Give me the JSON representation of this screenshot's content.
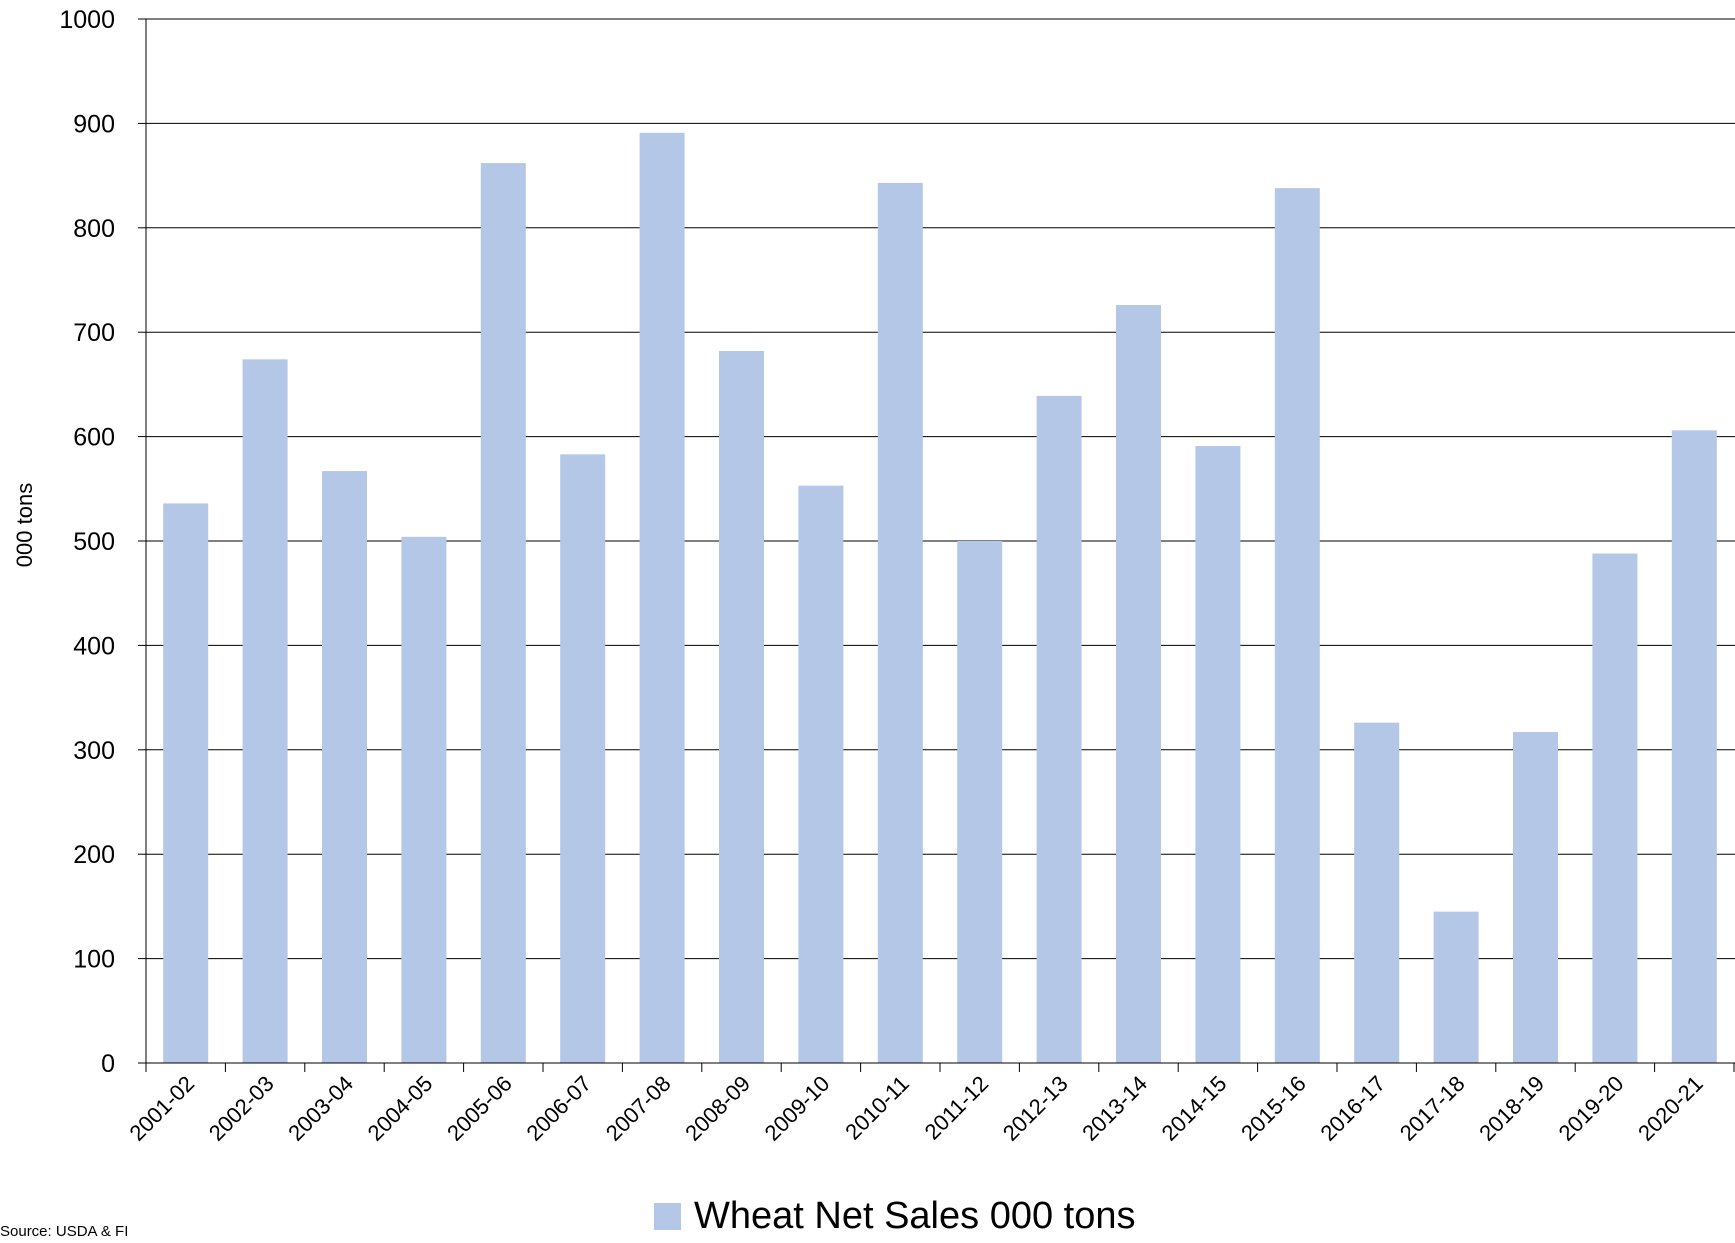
{
  "chart_data": {
    "type": "bar",
    "title": "",
    "xlabel": "",
    "ylabel": "000 tons",
    "ylim": [
      0,
      1000
    ],
    "yticks": [
      0,
      100,
      200,
      300,
      400,
      500,
      600,
      700,
      800,
      900,
      1000
    ],
    "grid": true,
    "legend_position": "bottom-center",
    "categories": [
      "2001-02",
      "2002-03",
      "2003-04",
      "2004-05",
      "2005-06",
      "2006-07",
      "2007-08",
      "2008-09",
      "2009-10",
      "2010-11",
      "2011-12",
      "2012-13",
      "2013-14",
      "2014-15",
      "2015-16",
      "2016-17",
      "2017-18",
      "2018-19",
      "2019-20",
      "2020-21"
    ],
    "series": [
      {
        "name": "Wheat Net Sales 000 tons",
        "color": "#b4c7e7",
        "values": [
          536,
          674,
          567,
          504,
          862,
          583,
          891,
          682,
          553,
          843,
          500,
          639,
          726,
          591,
          838,
          326,
          145,
          317,
          488,
          606
        ]
      }
    ],
    "source_note": "Source: USDA & FI"
  }
}
